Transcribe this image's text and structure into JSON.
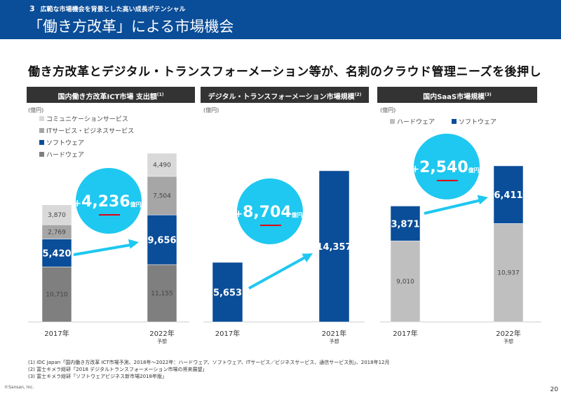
{
  "header": {
    "section_number": "3",
    "section_title": "広範な市場機会を背景とした高い成長ポテンシャル",
    "title": "「働き方改革」による市場機会"
  },
  "headline": "働き方改革とデジタル・トランスフォーメーション等が、名刺のクラウド管理ニーズを後押し",
  "colors": {
    "brand": "#0a4d98",
    "software": "#0a4d98",
    "hardware": "#7f7f7f",
    "it_services": "#a6a6a6",
    "communication": "#d9d9d9",
    "hardware_saas": "#bfbfbf",
    "callout": "#1ec8f0",
    "underline": "#e60012"
  },
  "chart_data": [
    {
      "type": "bar",
      "stacked": true,
      "title": "国内働き方改革ICT市場 支出額",
      "note_ref": "(1)",
      "unit": "(億円)",
      "categories": [
        "2017年",
        "2022年"
      ],
      "category_sub": [
        "",
        "予想"
      ],
      "legend": [
        "コミュニケーションサービス",
        "ITサービス・ビジネスサービス",
        "ソフトウェア",
        "ハードウェア"
      ],
      "series": [
        {
          "name": "ハードウェア",
          "values": [
            10710,
            11155
          ]
        },
        {
          "name": "ソフトウェア",
          "values": [
            5420,
            9656
          ]
        },
        {
          "name": "ITサービス・ビジネスサービス",
          "values": [
            2769,
            7504
          ]
        },
        {
          "name": "コミュニケーションサービス",
          "values": [
            3870,
            4490
          ]
        }
      ],
      "callout": {
        "value": "4,236",
        "unit": "億円"
      }
    },
    {
      "type": "bar",
      "title": "デジタル・トランスフォーメーション市場規模",
      "note_ref": "(2)",
      "unit": "(億円)",
      "categories": [
        "2017年",
        "2021年"
      ],
      "category_sub": [
        "",
        "予想"
      ],
      "series": [
        {
          "name": "",
          "values": [
            5653,
            14357
          ]
        }
      ],
      "callout": {
        "value": "8,704",
        "unit": "億円"
      }
    },
    {
      "type": "bar",
      "stacked": true,
      "title": "国内SaaS市場規模",
      "note_ref": "(3)",
      "unit": "(億円)",
      "categories": [
        "2017年",
        "2022年"
      ],
      "category_sub": [
        "",
        "予想"
      ],
      "legend": [
        "ハードウェア",
        "ソフトウェア"
      ],
      "series": [
        {
          "name": "ハードウェア",
          "values": [
            9010,
            10937
          ]
        },
        {
          "name": "ソフトウェア",
          "values": [
            3871,
            6411
          ]
        }
      ],
      "callout": {
        "value": "2,540",
        "unit": "億円"
      }
    }
  ],
  "footnotes": [
    "(1) IDC Japan「国内働き方改革 ICT市場予測、2018年～2022年：ハードウェア、ソフトウェア、ITサービス／ビジネスサービス、通信サービス別」、2018年12月",
    "(2) 富士キメラ総研「2018 デジタルトランスフォーメーション市場の将来展望」",
    "(3) 富士キメラ総研「ソフトウェアビジネス新市場2018年版」"
  ],
  "copyright": "©Sansan, Inc.",
  "page_number": "20"
}
